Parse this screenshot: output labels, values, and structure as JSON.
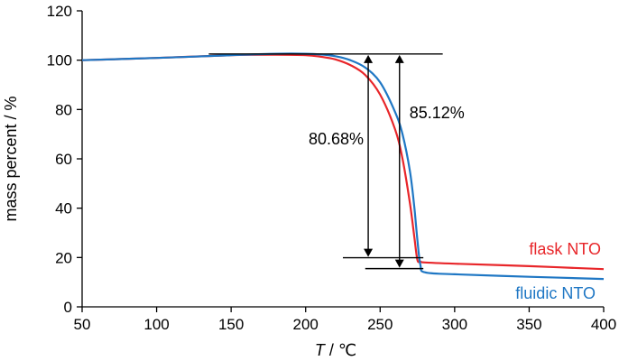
{
  "chart_data": {
    "type": "line",
    "xlabel_var": "T",
    "xlabel_unit": " / ℃",
    "ylabel": "mass percent / %",
    "xlim": [
      50,
      400
    ],
    "ylim": [
      0,
      120
    ],
    "xticks": [
      50,
      100,
      150,
      200,
      250,
      300,
      350,
      400
    ],
    "yticks": [
      0,
      20,
      40,
      60,
      80,
      100,
      120
    ],
    "grid": false,
    "series": [
      {
        "name": "flask NTO",
        "color": "#e8262a",
        "x": [
          50,
          100,
          150,
          180,
          200,
          210,
          220,
          230,
          240,
          250,
          260,
          265,
          270,
          273,
          275,
          277,
          280,
          300,
          350,
          400
        ],
        "y": [
          100,
          100.9,
          102,
          102.2,
          102,
          101.4,
          100.3,
          98,
          94,
          86,
          72,
          60,
          42,
          28,
          19,
          18.4,
          18,
          17.5,
          16.5,
          15.3
        ]
      },
      {
        "name": "fluidic NTO",
        "color": "#1f77c4",
        "x": [
          50,
          100,
          150,
          180,
          200,
          210,
          220,
          230,
          240,
          250,
          260,
          265,
          270,
          273,
          275,
          277,
          280,
          300,
          350,
          400
        ],
        "y": [
          100,
          100.9,
          102,
          102.6,
          102.6,
          102.3,
          101.6,
          100,
          97,
          91,
          79,
          70,
          55,
          40,
          27,
          17,
          14,
          13.2,
          12.2,
          11.3
        ]
      }
    ],
    "annotations": [
      {
        "text": "80.68%",
        "arrow_x": 242,
        "y_top": 102.5,
        "y_bottom": 19.9,
        "upper_line_x": [
          135,
          292
        ],
        "lower_line_x": [
          225,
          279
        ]
      },
      {
        "text": "85.12%",
        "arrow_x": 263,
        "y_top": 102.5,
        "y_bottom": 15.5,
        "lower_line_x": [
          240,
          279
        ]
      }
    ]
  }
}
